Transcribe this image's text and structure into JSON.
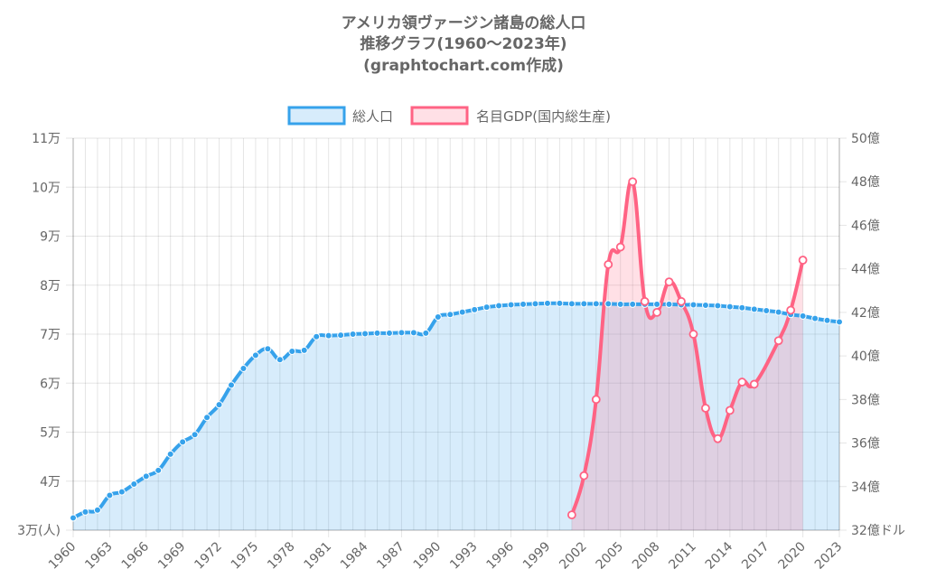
{
  "chart_data": {
    "type": "line",
    "title_lines": [
      "アメリカ領ヴァージン諸島の総人口",
      "推移グラフ(1960～2023年)",
      "(graphtochart.com作成)"
    ],
    "x": [
      1960,
      1961,
      1962,
      1963,
      1964,
      1965,
      1966,
      1967,
      1968,
      1969,
      1970,
      1971,
      1972,
      1973,
      1974,
      1975,
      1976,
      1977,
      1978,
      1979,
      1980,
      1981,
      1982,
      1983,
      1984,
      1985,
      1986,
      1987,
      1988,
      1989,
      1990,
      1991,
      1992,
      1993,
      1994,
      1995,
      1996,
      1997,
      1998,
      1999,
      2000,
      2001,
      2002,
      2003,
      2004,
      2005,
      2006,
      2007,
      2008,
      2009,
      2010,
      2011,
      2012,
      2013,
      2014,
      2015,
      2016,
      2017,
      2018,
      2019,
      2020,
      2021,
      2022,
      2023
    ],
    "x_tick_labels": [
      "1960",
      "1963",
      "1966",
      "1969",
      "1972",
      "1975",
      "1978",
      "1981",
      "1984",
      "1987",
      "1990",
      "1993",
      "1996",
      "1999",
      "2002",
      "2005",
      "2008",
      "2011",
      "2014",
      "2017",
      "2020",
      "2023"
    ],
    "y_left": {
      "range": [
        30000,
        110000
      ],
      "tick_labels": [
        "3万(人)",
        "4万",
        "5万",
        "6万",
        "7万",
        "8万",
        "9万",
        "10万",
        "11万"
      ]
    },
    "y_right": {
      "range": [
        3200000000,
        5000000000
      ],
      "tick_labels": [
        "32億ドル",
        "34億",
        "36億",
        "38億",
        "40億",
        "42億",
        "44億",
        "46億",
        "48億",
        "50億"
      ]
    },
    "grid": true,
    "legend_position": "top",
    "series": [
      {
        "name": "総人口",
        "axis": "left",
        "color": "#36a2eb",
        "fill": "rgba(54,162,235,0.2)",
        "values": [
          32500,
          33700,
          34100,
          37100,
          37800,
          39400,
          41000,
          42200,
          45500,
          48000,
          49500,
          53000,
          55600,
          59600,
          63000,
          65700,
          67000,
          64800,
          66500,
          66700,
          69500,
          69700,
          69800,
          70000,
          70100,
          70200,
          70200,
          70300,
          70300,
          70200,
          73500,
          74000,
          74500,
          75000,
          75500,
          75800,
          76000,
          76100,
          76200,
          76300,
          76300,
          76200,
          76200,
          76200,
          76200,
          76100,
          76100,
          76100,
          76100,
          76100,
          76000,
          76000,
          75900,
          75800,
          75600,
          75400,
          75100,
          74800,
          74500,
          74000,
          73700,
          73200,
          72800,
          72500
        ]
      },
      {
        "name": "名目GDP(国内総生産)",
        "axis": "right",
        "color": "#ff6384",
        "fill": "rgba(255,99,132,0.2)",
        "values": [
          null,
          null,
          null,
          null,
          null,
          null,
          null,
          null,
          null,
          null,
          null,
          null,
          null,
          null,
          null,
          null,
          null,
          null,
          null,
          null,
          null,
          null,
          null,
          null,
          null,
          null,
          null,
          null,
          null,
          null,
          null,
          null,
          null,
          null,
          null,
          null,
          null,
          null,
          null,
          null,
          null,
          3270000000,
          3450000000,
          3800000000,
          4420000000,
          4500000000,
          4800000000,
          4250000000,
          4200000000,
          4340000000,
          4250000000,
          4100000000,
          3760000000,
          3620000000,
          3750000000,
          3880000000,
          3870000000,
          null,
          4070000000,
          4210000000,
          4440000000,
          null,
          null,
          null
        ]
      }
    ]
  }
}
